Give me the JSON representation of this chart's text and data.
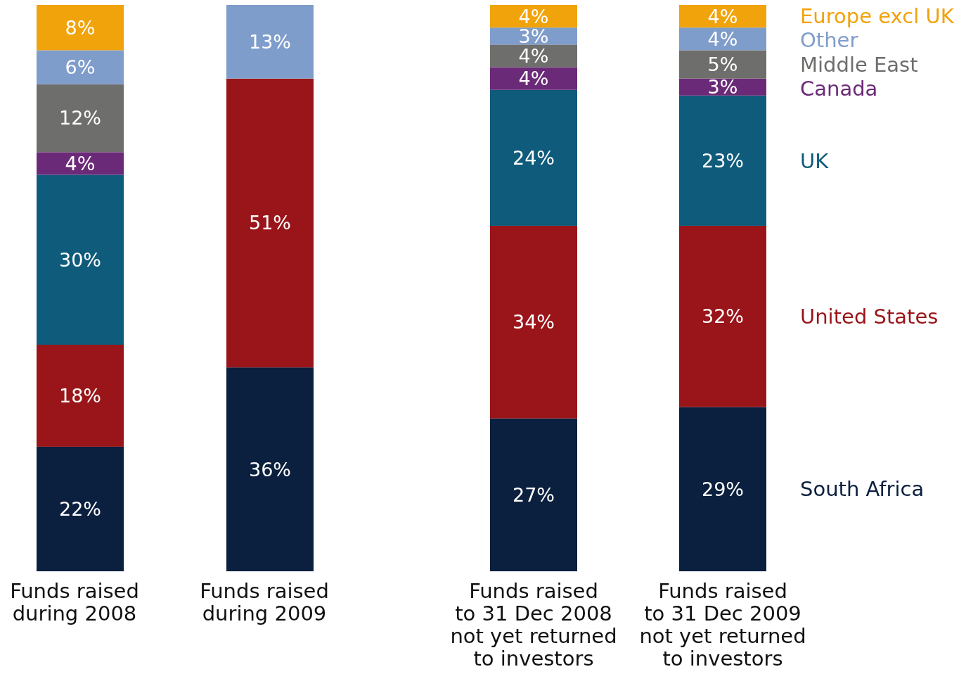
{
  "chart_data": {
    "type": "bar",
    "stacked": true,
    "categories": [
      "Funds raised\nduring 2008",
      "Funds raised\nduring 2009",
      "Funds raised\nto 31 Dec 2008\nnot yet returned\nto investors",
      "Funds raised\nto 31 Dec 2009\nnot yet returned\nto investors"
    ],
    "ylim": [
      0,
      100
    ],
    "tick_labels": "x",
    "legend": "right",
    "series": [
      {
        "name": "South Africa",
        "color": "#0b1f3e",
        "values": [
          22,
          36,
          27,
          29
        ],
        "value_labels": [
          "22%",
          "36%",
          "27%",
          "29%"
        ]
      },
      {
        "name": "United States",
        "color": "#9a1519",
        "values": [
          18,
          51,
          34,
          32
        ],
        "value_labels": [
          "18%",
          "51%",
          "34%",
          "32%"
        ]
      },
      {
        "name": "UK",
        "color": "#0e5b7b",
        "values": [
          30,
          null,
          24,
          23
        ],
        "value_labels": [
          "30%",
          null,
          "24%",
          "23%"
        ]
      },
      {
        "name": "Canada",
        "color": "#6b2a78",
        "values": [
          4,
          null,
          4,
          3
        ],
        "value_labels": [
          "4%",
          null,
          "4%",
          "3%"
        ]
      },
      {
        "name": "Middle East",
        "color": "#6e6e6c",
        "values": [
          12,
          null,
          4,
          5
        ],
        "value_labels": [
          "12%",
          null,
          "4%",
          "5%"
        ]
      },
      {
        "name": "Other",
        "color": "#7f9dcb",
        "values": [
          6,
          13,
          3,
          4
        ],
        "value_labels": [
          "6%",
          "13%",
          "3%",
          "4%"
        ]
      },
      {
        "name": "Europe excl UK",
        "color": "#f0a30b",
        "values": [
          8,
          null,
          4,
          4
        ],
        "value_labels": [
          "8%",
          null,
          "4%",
          "4%"
        ]
      }
    ]
  }
}
